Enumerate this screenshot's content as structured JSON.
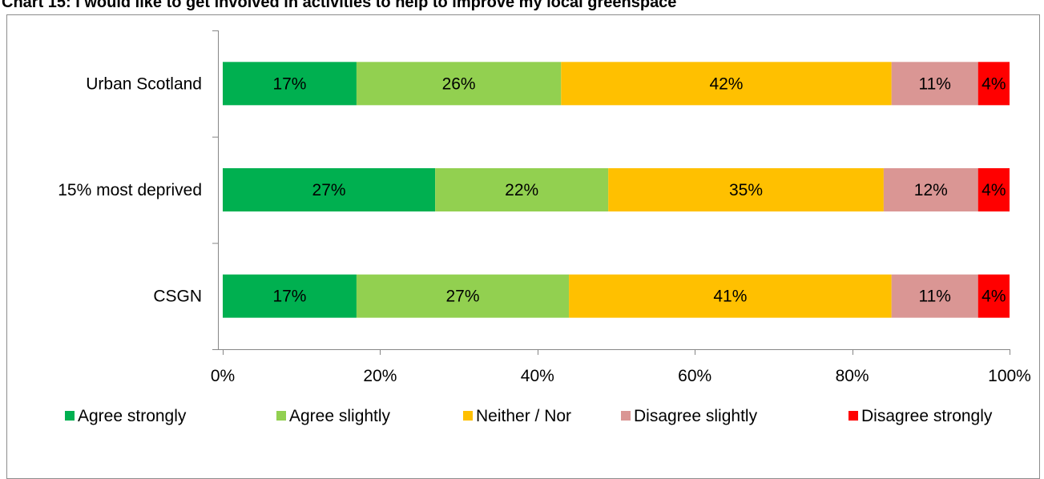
{
  "chart_data": {
    "type": "bar",
    "orientation": "horizontal",
    "stacked": true,
    "title": "Chart 15: I would like to get involved in activities to help to improve my local greenspace",
    "categories": [
      "Urban Scotland",
      "15% most deprived",
      "CSGN"
    ],
    "series": [
      {
        "name": "Agree strongly",
        "color": "#00b050",
        "values": [
          17,
          27,
          17
        ],
        "labels": [
          "17%",
          "27%",
          "17%"
        ]
      },
      {
        "name": "Agree slightly",
        "color": "#92d050",
        "values": [
          26,
          22,
          27
        ],
        "labels": [
          "26%",
          "22%",
          "27%"
        ]
      },
      {
        "name": "Neither / Nor",
        "color": "#ffc000",
        "values": [
          42,
          35,
          41
        ],
        "labels": [
          "42%",
          "35%",
          "41%"
        ]
      },
      {
        "name": "Disagree slightly",
        "color": "#da9694",
        "values": [
          11,
          12,
          11
        ],
        "labels": [
          "11%",
          "12%",
          "11%"
        ]
      },
      {
        "name": "Disagree strongly",
        "color": "#ff0000",
        "values": [
          4,
          4,
          4
        ],
        "labels": [
          "4%",
          "4%",
          "4%"
        ]
      }
    ],
    "xlim": [
      0,
      100
    ],
    "x_ticks": [
      "0%",
      "20%",
      "40%",
      "60%",
      "80%",
      "100%"
    ],
    "grid": false,
    "legend_position": "bottom"
  }
}
